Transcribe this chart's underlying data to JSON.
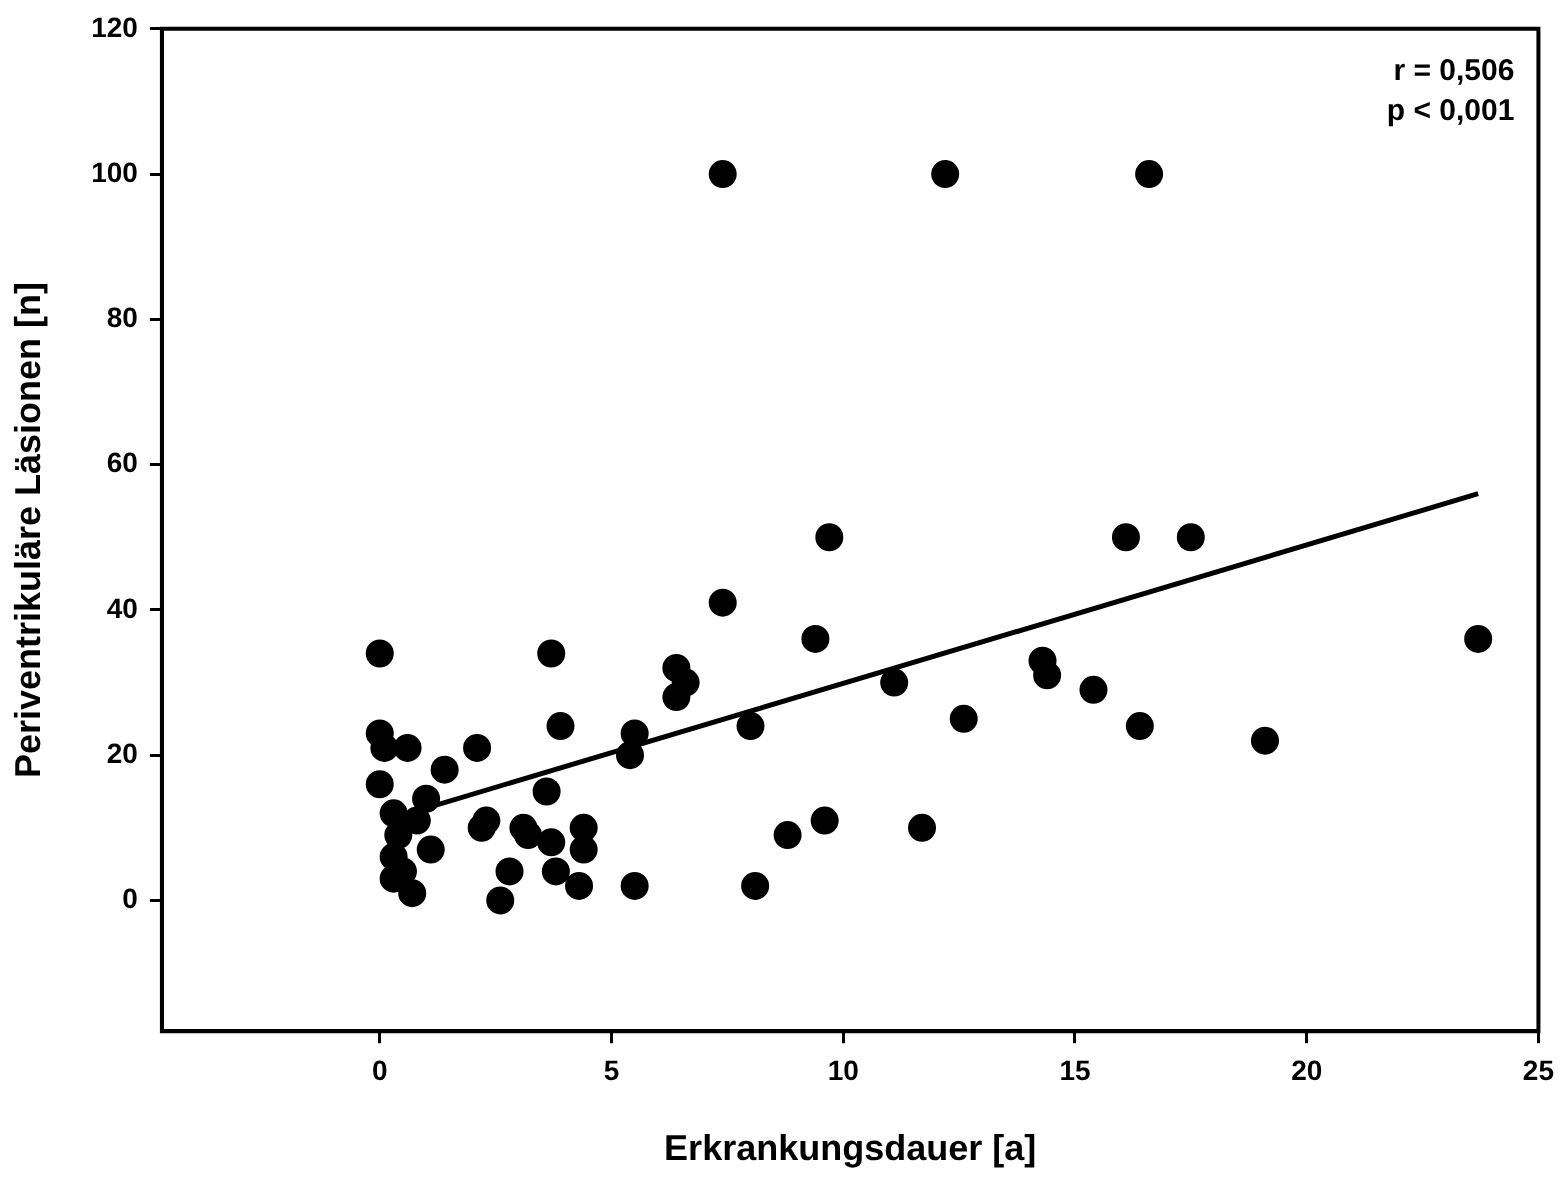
{
  "chart_data": {
    "type": "scatter",
    "xlabel": "Erkrankungsdauer [a]",
    "ylabel": "Periventrikuläre Läsionen [n]",
    "xlim": [
      -4.7,
      25
    ],
    "xticks": [
      0,
      5,
      10,
      15,
      20,
      25
    ],
    "ylim": [
      -18,
      120
    ],
    "yticks": [
      0,
      20,
      40,
      60,
      80,
      100,
      120
    ],
    "grid": false,
    "legend": false,
    "marker": "circle",
    "annotations": [
      "r = 0,506",
      "p < 0,001"
    ],
    "series": [
      {
        "type": "scatter",
        "color": "#000000",
        "x": [
          0.0,
          0.0,
          0.1,
          0.0,
          0.6,
          0.3,
          0.4,
          0.3,
          0.5,
          0.3,
          0.7,
          0.8,
          1.0,
          1.1,
          1.4,
          2.1,
          2.2,
          2.3,
          2.6,
          2.8,
          3.1,
          3.2,
          3.6,
          3.7,
          3.7,
          3.8,
          3.9,
          4.4,
          4.4,
          4.3,
          5.4,
          5.5,
          5.5,
          6.4,
          6.6,
          6.4,
          7.4,
          7.4,
          8.0,
          8.1,
          8.8,
          9.4,
          9.6,
          9.7,
          11.1,
          11.7,
          12.2,
          12.6,
          14.3,
          14.4,
          15.4,
          16.1,
          16.4,
          16.6,
          17.5,
          19.1,
          23.7
        ],
        "values": [
          34,
          23,
          21,
          16,
          21,
          12,
          9,
          3,
          4,
          6,
          1,
          11,
          14,
          7,
          18,
          21,
          10,
          11,
          0,
          4,
          10,
          9,
          15,
          34,
          8,
          4,
          24,
          10,
          7,
          2,
          20,
          23,
          2,
          32,
          30,
          28,
          100,
          41,
          24,
          2,
          9,
          36,
          11,
          50,
          30,
          10,
          100,
          25,
          33,
          31,
          29,
          50,
          24,
          100,
          50,
          22,
          36
        ]
      },
      {
        "type": "line",
        "color": "#000000",
        "marker": "none",
        "line_style": "solid",
        "x": [
          0.1,
          23.7
        ],
        "values": [
          11,
          56
        ]
      }
    ]
  }
}
